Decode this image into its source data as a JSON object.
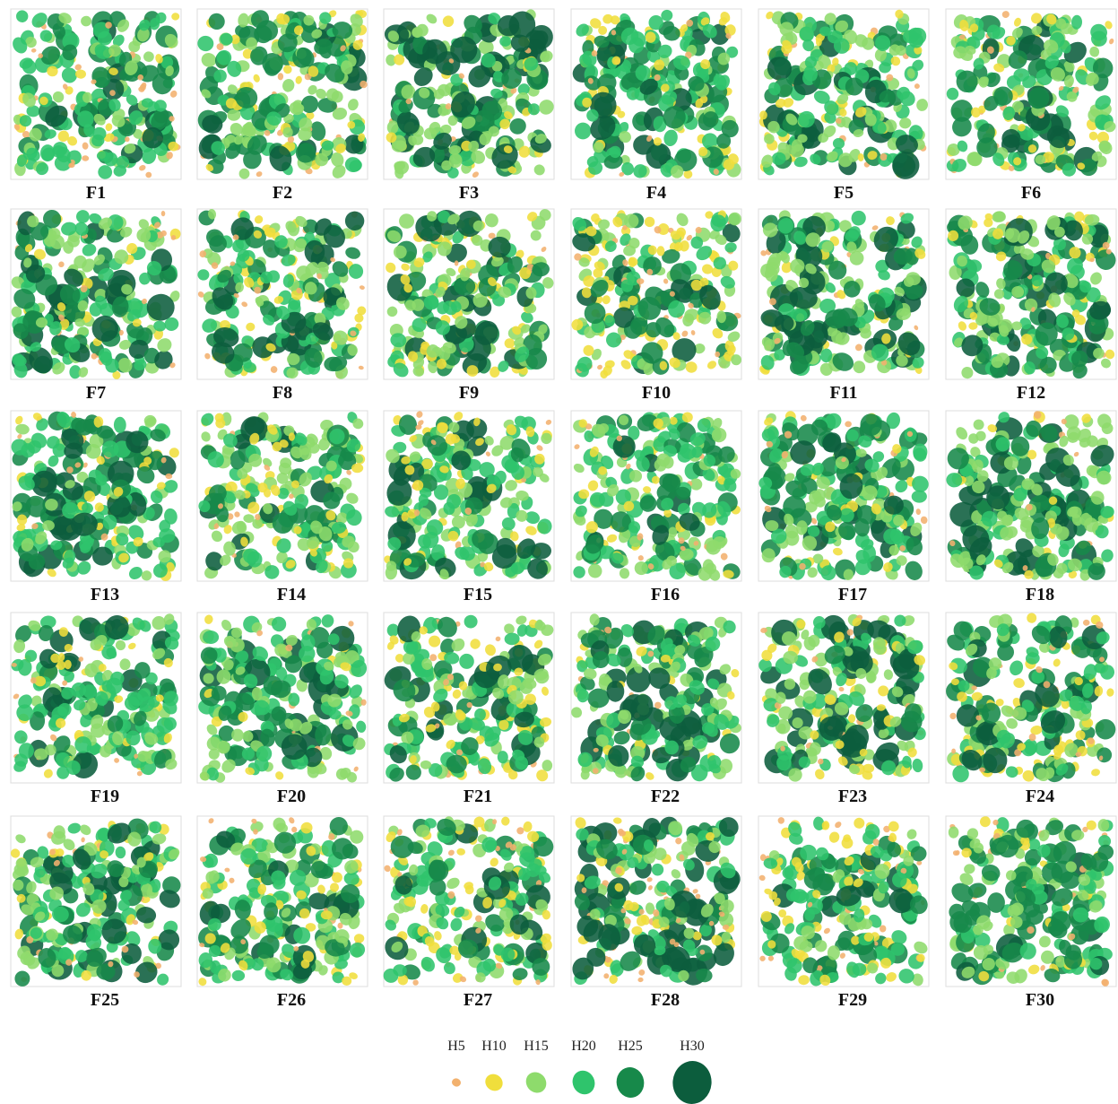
{
  "panels": [
    "F1",
    "F2",
    "F3",
    "F4",
    "F5",
    "F6",
    "F7",
    "F8",
    "F9",
    "F10",
    "F11",
    "F12",
    "F13",
    "F14",
    "F15",
    "F16",
    "F17",
    "F18",
    "F19",
    "F20",
    "F21",
    "F22",
    "F23",
    "F24",
    "F25",
    "F26",
    "F27",
    "F28",
    "F29",
    "F30"
  ],
  "legend": [
    {
      "label": "H5",
      "color": "#f2b16e"
    },
    {
      "label": "H10",
      "color": "#f0de3c"
    },
    {
      "label": "H15",
      "color": "#8edb6c"
    },
    {
      "label": "H20",
      "color": "#2fc46c"
    },
    {
      "label": "H25",
      "color": "#17894a"
    },
    {
      "label": "H30",
      "color": "#0c5d3d"
    }
  ]
}
